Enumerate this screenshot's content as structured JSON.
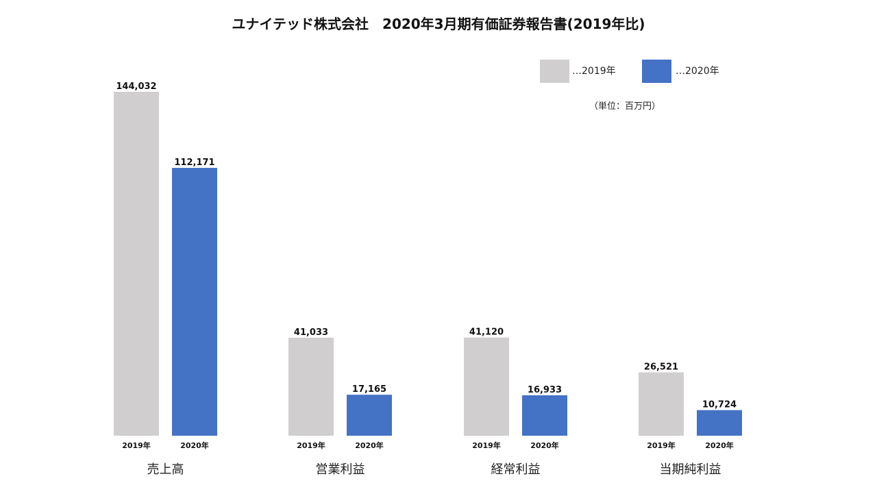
{
  "chart_data": {
    "type": "bar",
    "title": "ユナイテッド株式会社　2020年3月期有価証券報告書(2019年比)",
    "unit": "（単位：百万円）",
    "legend_position": "top-right",
    "grid": false,
    "categories": [
      "売上高",
      "営業利益",
      "経常利益",
      "当期純利益"
    ],
    "series": [
      {
        "name": "…2019年",
        "bar_label": "2019年",
        "color": "#d0cece",
        "values": [
          144032,
          41033,
          41120,
          26521
        ]
      },
      {
        "name": "…2020年",
        "bar_label": "2020年",
        "color": "#4472c4",
        "values": [
          112171,
          17165,
          16933,
          10724
        ]
      }
    ],
    "ylim": [
      0,
      144032
    ]
  }
}
